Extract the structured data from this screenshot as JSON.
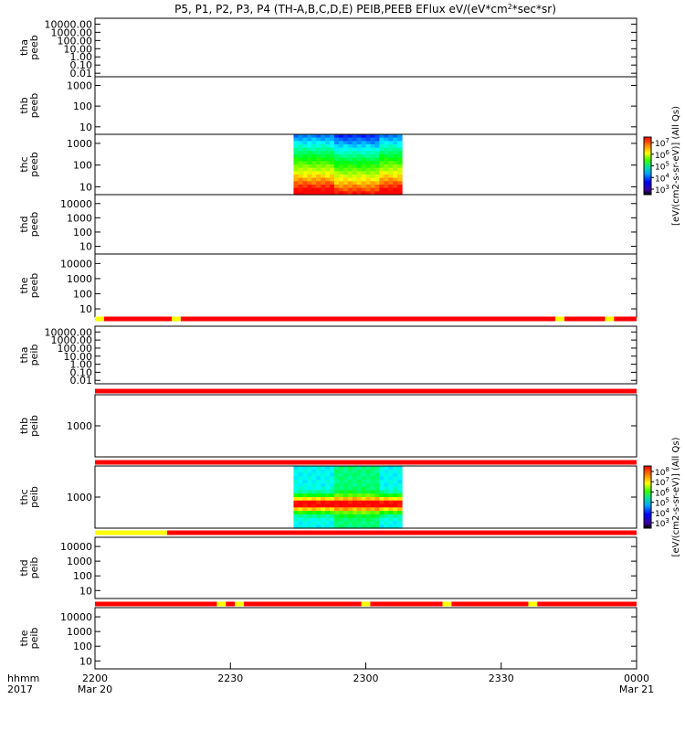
{
  "figure": {
    "title": "P5, P1, P2, P3, P4 (TH-A,B,C,D,E) PEIB,PEEB EFlux eV/(eV*cm",
    "title_sup": "2",
    "title_tail": "*sec*sr)"
  },
  "chart_data": {
    "type": "heatmap",
    "x_axis": {
      "format_label": "hhmm",
      "year_label": "2017",
      "range": [
        "2017-03-20 22:00",
        "2017-03-21 00:00"
      ],
      "tick_hhmm": [
        "2200",
        "2230",
        "2300",
        "2330",
        "0000"
      ],
      "tick_dates": [
        "Mar 20",
        "",
        "",
        "",
        "Mar 21"
      ]
    },
    "panels": [
      {
        "id": "tha-peeb",
        "probe": "tha",
        "product": "peeb",
        "yscale": "log",
        "ytick_labels": [
          "10000.00",
          "1000.00",
          "100.00",
          "10.00",
          "1.00",
          "0.10",
          "0.01"
        ],
        "has_data": false
      },
      {
        "id": "thb-peeb",
        "probe": "thb",
        "product": "peeb",
        "yscale": "log",
        "ytick_labels": [
          "1000",
          "100",
          "10"
        ],
        "has_data": false
      },
      {
        "id": "thc-peeb",
        "probe": "thc",
        "product": "peeb",
        "yscale": "log",
        "ytick_labels": [
          "1000",
          "100",
          "10"
        ],
        "has_data": true,
        "data_time_range": [
          "22:44",
          "23:08"
        ],
        "description": "Electron energy flux spectrogram: red/orange (high flux) at low energies, yellow-green to blue (low flux) at high energies"
      },
      {
        "id": "thd-peeb",
        "probe": "thd",
        "product": "peeb",
        "yscale": "log",
        "ytick_labels": [
          "10000",
          "1000",
          "100",
          "10"
        ],
        "has_data": false
      },
      {
        "id": "the-peeb",
        "probe": "the",
        "product": "peeb",
        "yscale": "log",
        "ytick_labels": [
          "10000",
          "1000",
          "100",
          "10"
        ],
        "has_data": false,
        "bottom_status_bar": {
          "color": "red",
          "yellow_intervals": [
            [
              "22:00",
              "22:02"
            ],
            [
              "22:17",
              "22:19"
            ],
            [
              "23:42",
              "23:44"
            ],
            [
              "23:53",
              "23:55"
            ]
          ]
        }
      },
      {
        "id": "tha-peib",
        "probe": "tha",
        "product": "peib",
        "yscale": "log",
        "ytick_labels": [
          "10000.00",
          "1000.00",
          "100.00",
          "10.00",
          "1.00",
          "0.10",
          "0.01"
        ],
        "has_data": false,
        "bottom_status_bar": {
          "color": "red",
          "yellow_intervals": []
        }
      },
      {
        "id": "thb-peib",
        "probe": "thb",
        "product": "peib",
        "yscale": "log",
        "ytick_labels": [
          "1000"
        ],
        "has_data": false,
        "bottom_status_bar": {
          "color": "red",
          "yellow_intervals": []
        }
      },
      {
        "id": "thc-peib",
        "probe": "thc",
        "product": "peib",
        "yscale": "log",
        "ytick_labels": [
          "1000"
        ],
        "has_data": true,
        "data_time_range": [
          "22:44",
          "23:08"
        ],
        "description": "Ion energy flux spectrogram: red/yellow band near 1000 eV, blue to green at other energies",
        "bottom_status_bar": {
          "color": "red",
          "yellow_intervals": [
            [
              "22:00",
              "22:16"
            ]
          ]
        }
      },
      {
        "id": "thd-peib",
        "probe": "thd",
        "product": "peib",
        "yscale": "log",
        "ytick_labels": [
          "10000",
          "1000",
          "100",
          "10"
        ],
        "has_data": false,
        "bottom_status_bar": {
          "color": "red",
          "yellow_intervals": [
            [
              "22:27",
              "22:29"
            ],
            [
              "22:31",
              "22:33"
            ],
            [
              "22:59",
              "23:01"
            ],
            [
              "23:17",
              "23:19"
            ],
            [
              "23:36",
              "23:38"
            ]
          ]
        }
      },
      {
        "id": "the-peib",
        "probe": "the",
        "product": "peib",
        "yscale": "log",
        "ytick_labels": [
          "10000",
          "1000",
          "100",
          "10"
        ],
        "has_data": false
      }
    ],
    "colorbars": [
      {
        "id": "peeb",
        "tick_labels": [
          "10",
          "10",
          "10",
          "10",
          "10"
        ],
        "tick_exponents": [
          "7",
          "6",
          "5",
          "4",
          "3"
        ],
        "label": "[eV/(cm2-s-sr-eV)] (All Qs)"
      },
      {
        "id": "peib",
        "tick_labels": [
          "10",
          "10",
          "10",
          "10",
          "10",
          "10"
        ],
        "tick_exponents": [
          "8",
          "7",
          "6",
          "5",
          "4",
          "3"
        ],
        "label": "[eV/(cm2-s-sr-eV)] (All Qs)"
      }
    ]
  },
  "colors": {
    "status_red": "#ff0000",
    "status_yellow": "#ffff00",
    "axis": "#000000"
  }
}
